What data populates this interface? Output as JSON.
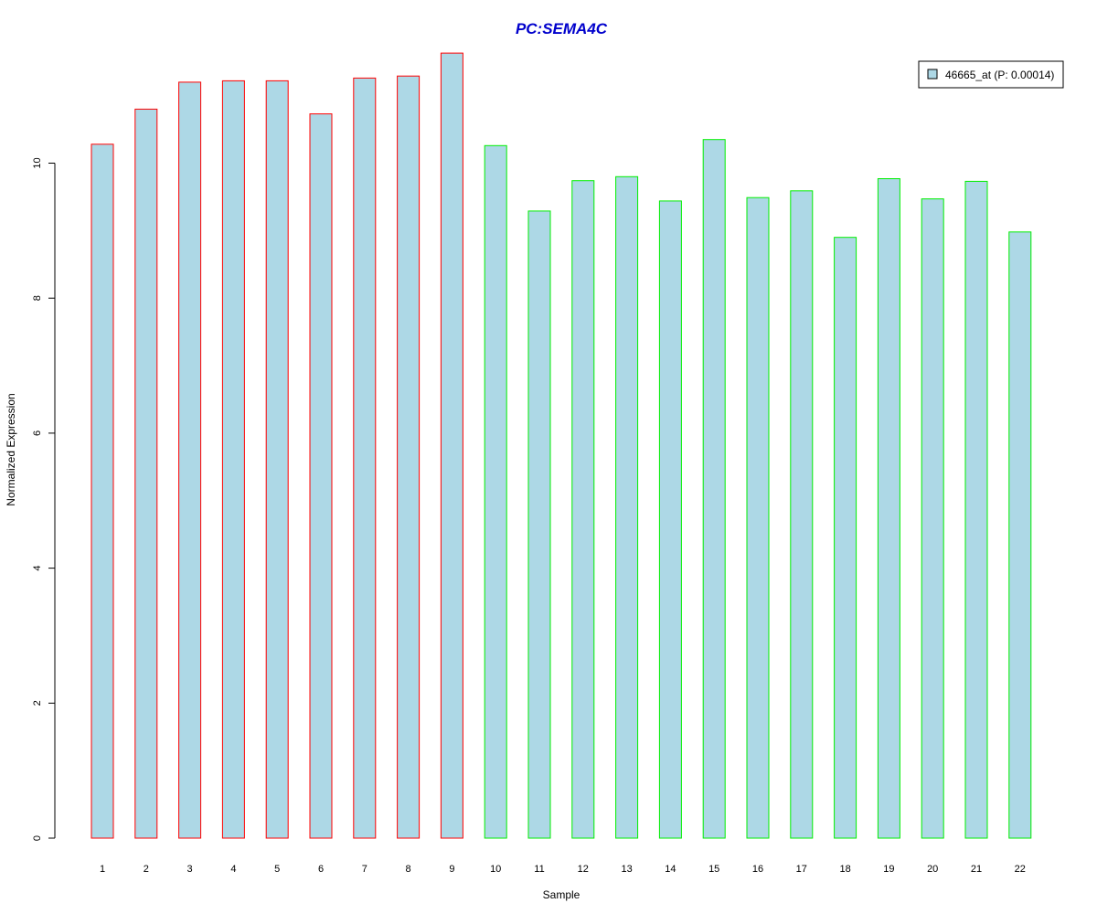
{
  "chart_data": {
    "type": "bar",
    "title": "PC:SEMA4C",
    "xlabel": "Sample",
    "ylabel": "Normalized Expression",
    "categories": [
      "1",
      "2",
      "3",
      "4",
      "5",
      "6",
      "7",
      "8",
      "9",
      "10",
      "11",
      "12",
      "13",
      "14",
      "15",
      "16",
      "17",
      "18",
      "19",
      "20",
      "21",
      "22"
    ],
    "series": [
      {
        "name": "46665_at (P: 0.00014)",
        "values": [
          10.28,
          10.8,
          11.2,
          11.22,
          11.22,
          10.73,
          11.26,
          11.29,
          11.63,
          10.26,
          9.29,
          9.74,
          9.8,
          9.44,
          10.35,
          9.49,
          9.59,
          8.9,
          9.77,
          9.47,
          9.73,
          8.98
        ],
        "group_colors": [
          "#ff0000",
          "#ff0000",
          "#ff0000",
          "#ff0000",
          "#ff0000",
          "#ff0000",
          "#ff0000",
          "#ff0000",
          "#ff0000",
          "#00ee00",
          "#00ee00",
          "#00ee00",
          "#00ee00",
          "#00ee00",
          "#00ee00",
          "#00ee00",
          "#00ee00",
          "#00ee00",
          "#00ee00",
          "#00ee00",
          "#00ee00",
          "#00ee00"
        ]
      }
    ],
    "y_ticks": [
      "0",
      "2",
      "4",
      "6",
      "8",
      "10"
    ],
    "ylim": [
      0,
      11.8
    ],
    "grid": false,
    "legend_position": "top-right",
    "colors": {
      "bar_fill": "#add8e6",
      "group1_border": "#ff0000",
      "group2_border": "#00ee00",
      "title": "#0000cc",
      "axis": "#000000"
    }
  }
}
